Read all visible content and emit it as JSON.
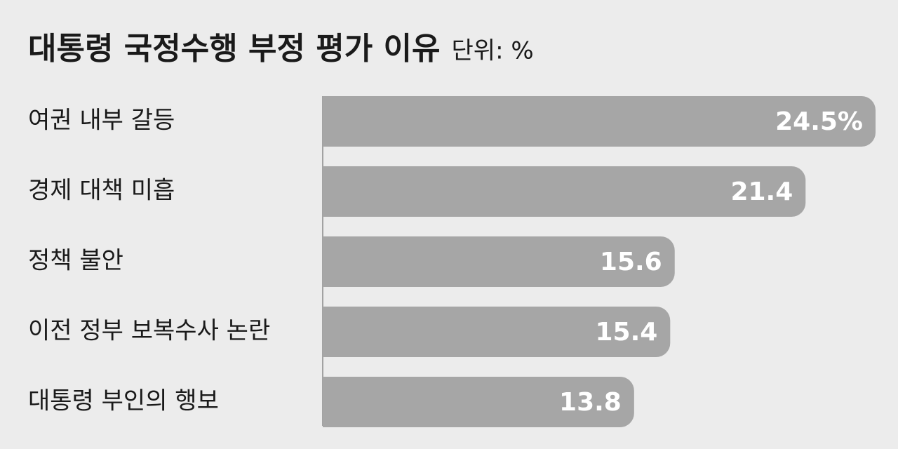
{
  "chart_data": {
    "type": "bar",
    "orientation": "horizontal",
    "title": "대통령 국정수행 부정 평가 이유",
    "subtitle": "단위: %",
    "categories": [
      "여권 내부 갈등",
      "경제 대책 미흡",
      "정책 불안",
      "이전 정부 보복수사 논란",
      "대통령 부인의 행보"
    ],
    "values": [
      24.5,
      21.4,
      15.6,
      15.4,
      13.8
    ],
    "value_labels": [
      "24.5%",
      "21.4",
      "15.6",
      "15.4",
      "13.8"
    ],
    "color": "#a6a6a6"
  }
}
